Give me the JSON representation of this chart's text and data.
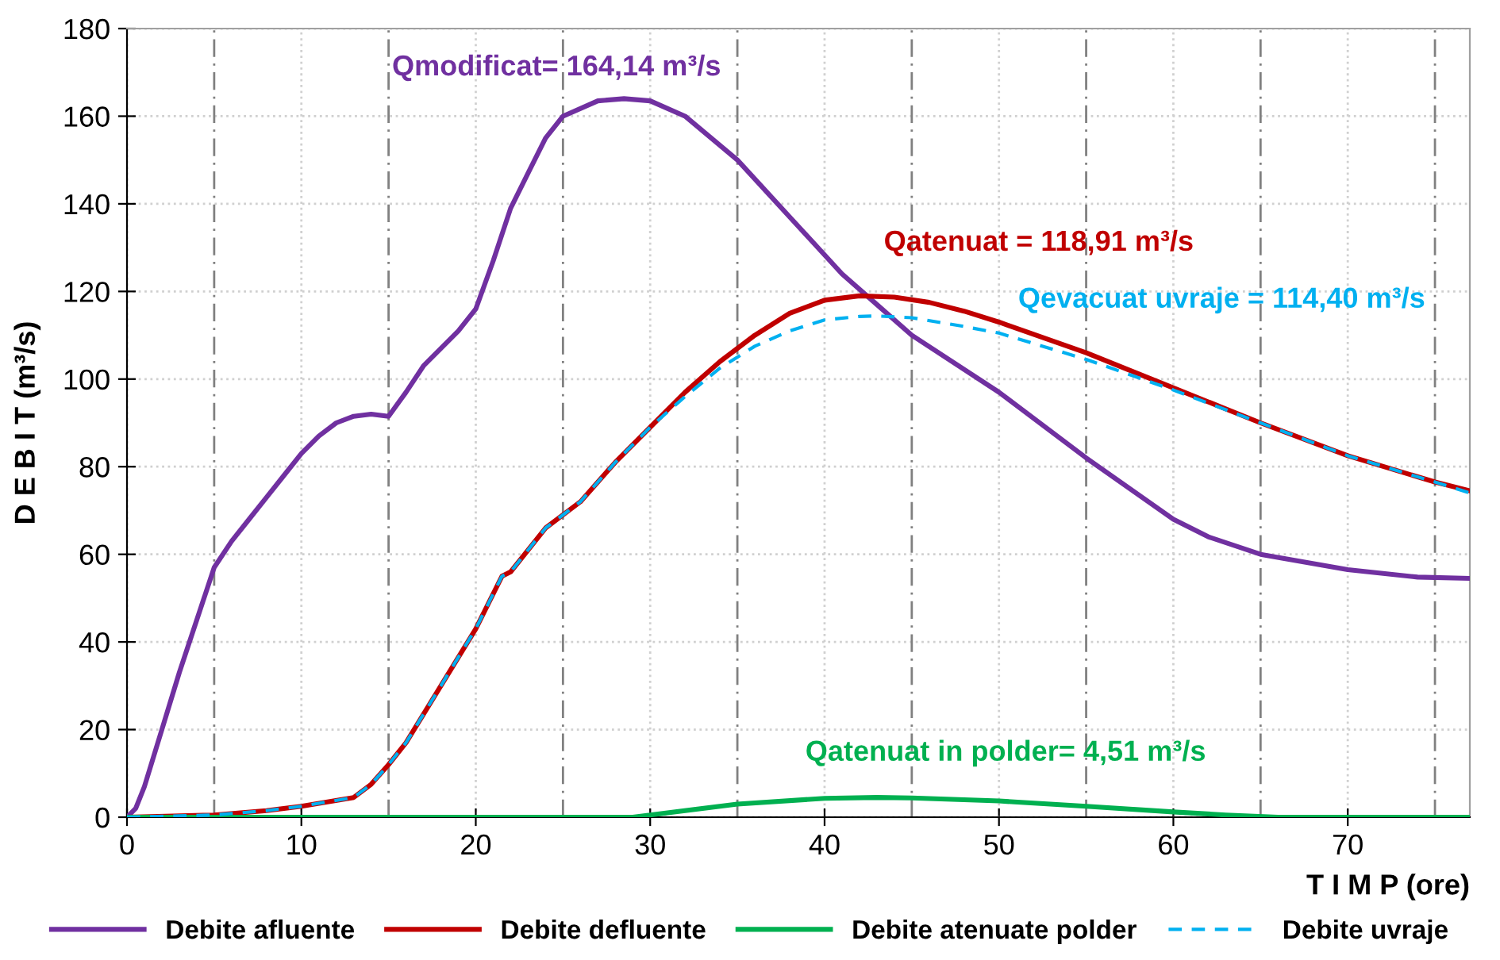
{
  "chart_data": {
    "type": "line",
    "xlabel": "T I M P (ore)",
    "ylabel": "D E B I T (m³/s)",
    "xlim": [
      0,
      77
    ],
    "xticks": [
      0,
      10,
      20,
      30,
      40,
      50,
      60,
      70
    ],
    "ylim": [
      0,
      180
    ],
    "yticks": [
      0,
      20,
      40,
      60,
      80,
      100,
      120,
      140,
      160,
      180
    ],
    "grid": true,
    "legend": "bottom",
    "marker": "none",
    "ref_lines": [
      {
        "axis": "x",
        "value": 5,
        "line_style": "dashed",
        "color": "#808080"
      },
      {
        "axis": "x",
        "value": 15,
        "line_style": "dashed",
        "color": "#808080"
      },
      {
        "axis": "x",
        "value": 25,
        "line_style": "dashed",
        "color": "#808080"
      },
      {
        "axis": "x",
        "value": 35,
        "line_style": "dashed",
        "color": "#808080"
      },
      {
        "axis": "x",
        "value": 45,
        "line_style": "dashed",
        "color": "#808080"
      },
      {
        "axis": "x",
        "value": 55,
        "line_style": "dashed",
        "color": "#808080"
      },
      {
        "axis": "x",
        "value": 65,
        "line_style": "dashed",
        "color": "#808080"
      },
      {
        "axis": "x",
        "value": 75,
        "line_style": "dashed",
        "color": "#808080"
      }
    ],
    "series": [
      {
        "name": "Debite afluente",
        "color": "#7030a0",
        "line_style": "solid",
        "x": [
          0,
          0.5,
          1,
          2,
          3,
          4,
          5,
          6,
          7,
          8,
          9,
          10,
          11,
          12,
          13,
          14,
          15,
          16,
          17,
          18,
          19,
          20,
          21,
          22,
          23,
          24,
          25,
          27,
          28.5,
          30,
          32,
          35,
          38,
          41,
          43,
          45,
          50,
          55,
          60,
          62,
          65,
          70,
          74,
          77
        ],
        "values": [
          0,
          2,
          7,
          20,
          33,
          45,
          57,
          63,
          68,
          73,
          78,
          83,
          87,
          90,
          91.5,
          92,
          91.5,
          97,
          103,
          107,
          111,
          116,
          127,
          139,
          147,
          155,
          160,
          163.5,
          164,
          163.5,
          160,
          150,
          137,
          124,
          117,
          110,
          97,
          82,
          68,
          64,
          60,
          56.5,
          54.8,
          54.5
        ]
      },
      {
        "name": "Debite defluente",
        "color": "#c00000",
        "line_style": "solid",
        "x": [
          0,
          5,
          8,
          10,
          13,
          14,
          15,
          16,
          18,
          20,
          21.5,
          22,
          24,
          26,
          28,
          30,
          32,
          34,
          36,
          38,
          40,
          42,
          44,
          46,
          48,
          50,
          55,
          60,
          65,
          70,
          75,
          77
        ],
        "values": [
          0,
          0.5,
          1.5,
          2.5,
          4.5,
          7.5,
          12,
          17,
          30,
          43,
          55,
          56,
          66,
          72,
          81,
          89,
          97,
          104,
          110,
          115,
          118,
          119,
          118.7,
          117.5,
          115.5,
          113,
          106,
          98,
          90,
          82.5,
          76.5,
          74.5
        ]
      },
      {
        "name": "Debite atenuate polder",
        "color": "#00b050",
        "line_style": "solid",
        "x": [
          0,
          29,
          30,
          35,
          40,
          43,
          45,
          50,
          55,
          60,
          63,
          66,
          77
        ],
        "values": [
          0,
          0,
          0.5,
          3,
          4.3,
          4.5,
          4.4,
          3.7,
          2.5,
          1.2,
          0.5,
          0,
          0
        ]
      },
      {
        "name": "Debite uvraje",
        "color": "#00b0f0",
        "line_style": "dashed",
        "x": [
          0,
          5,
          8,
          10,
          13,
          14,
          15,
          16,
          18,
          20,
          21.5,
          22,
          24,
          26,
          28,
          30,
          32,
          34,
          36,
          38,
          40,
          42,
          43,
          45,
          48,
          50,
          55,
          60,
          65,
          70,
          75,
          77
        ],
        "values": [
          0,
          0.5,
          1.5,
          2.5,
          4.5,
          7.5,
          12,
          17,
          30,
          43,
          55,
          56,
          66,
          72,
          81,
          89,
          96,
          102.5,
          107.5,
          111,
          113.5,
          114.3,
          114.4,
          114,
          112,
          110.5,
          104.5,
          97.5,
          90,
          82.5,
          76.5,
          74
        ]
      }
    ],
    "annotations": [
      "Qmodificat= 164,14 m³/s",
      "Qatenuat = 118,91 m³/s",
      "Qatenuat in polder= 4,51 m³/s",
      "Qevacuat uvraje = 114,40 m³/s"
    ]
  }
}
